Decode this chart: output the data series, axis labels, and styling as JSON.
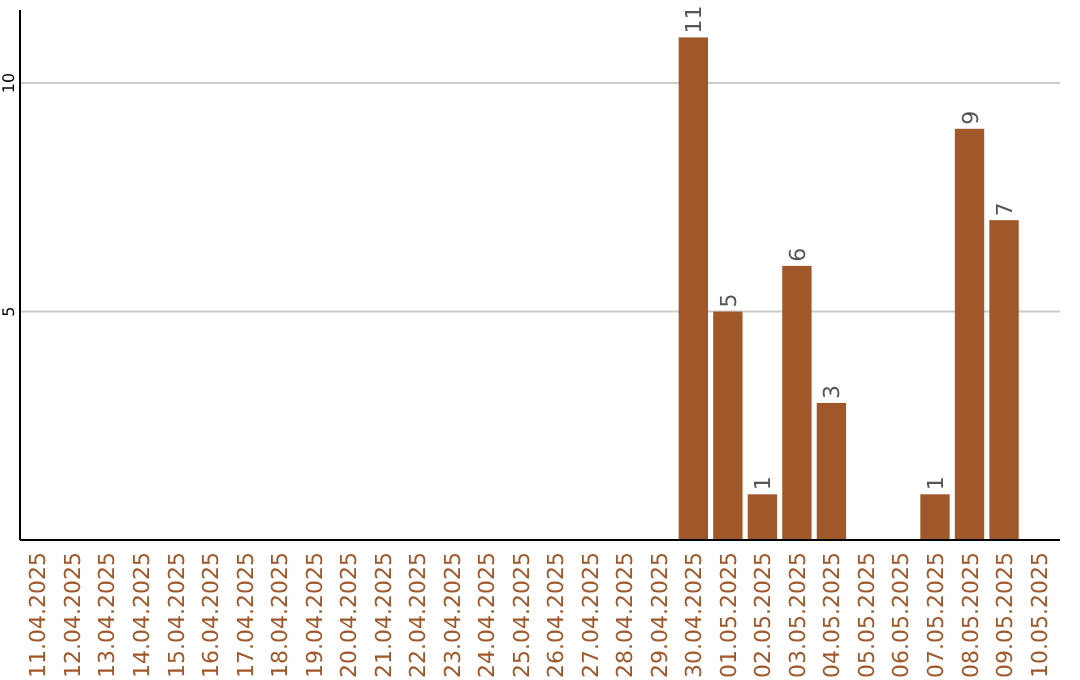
{
  "chart_data": {
    "type": "bar",
    "categories": [
      "11.04.2025",
      "12.04.2025",
      "13.04.2025",
      "14.04.2025",
      "15.04.2025",
      "16.04.2025",
      "17.04.2025",
      "18.04.2025",
      "19.04.2025",
      "20.04.2025",
      "21.04.2025",
      "22.04.2025",
      "23.04.2025",
      "24.04.2025",
      "25.04.2025",
      "26.04.2025",
      "27.04.2025",
      "28.04.2025",
      "29.04.2025",
      "30.04.2025",
      "01.05.2025",
      "02.05.2025",
      "03.05.2025",
      "04.05.2025",
      "05.05.2025",
      "06.05.2025",
      "07.05.2025",
      "08.05.2025",
      "09.05.2025",
      "10.05.2025"
    ],
    "values": [
      null,
      null,
      null,
      null,
      null,
      null,
      null,
      null,
      null,
      null,
      null,
      null,
      null,
      null,
      null,
      null,
      null,
      null,
      null,
      11,
      5,
      1,
      6,
      3,
      null,
      null,
      1,
      9,
      7,
      null
    ],
    "color": "#a0582a",
    "data_labels": true,
    "ylim": [
      0,
      11.6
    ],
    "yticks": [
      5,
      10
    ],
    "grid": "y"
  }
}
